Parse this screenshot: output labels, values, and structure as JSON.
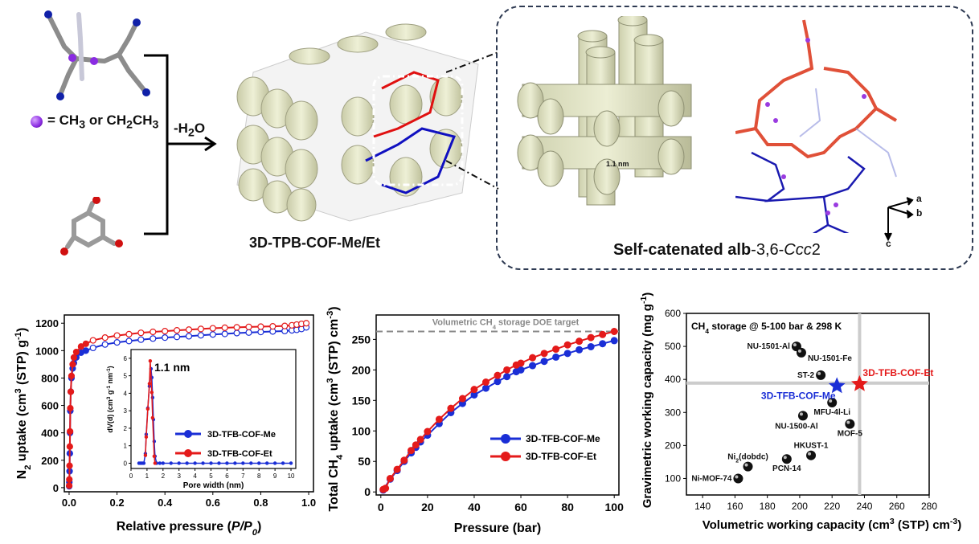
{
  "scheme": {
    "legend_text": "= CH",
    "legend_sub1": "3",
    "legend_or": " or CH",
    "legend_sub2": "2",
    "legend_ch": "CH",
    "legend_sub3": "3",
    "reaction_label": "-H",
    "reaction_sub": "2",
    "reaction_o": "O",
    "product_label": "3D-TPB-COF-Me/Et",
    "pore_label": "1.1 nm",
    "topology_prefix": "Self-catenated ",
    "topology_alb": "alb",
    "topology_mid": "-3,6-",
    "topology_italic": "Ccc",
    "topology_suffix": "2",
    "axes": {
      "a": "a",
      "b": "b",
      "c": "c"
    },
    "colors": {
      "methyl": "#8a2be2",
      "net1": "#e03020",
      "net2": "#1020c0",
      "pore": "#e6e8cc",
      "frame": "#2e3a52"
    }
  },
  "chart_data": [
    {
      "type": "scatter",
      "name": "n2-isotherm",
      "xlabel": "Relative pressure (P/P0)",
      "ylabel": "N2 uptake (cm3 (STP) g-1)",
      "xlim": [
        -0.02,
        1.02
      ],
      "ylim": [
        -30,
        1260
      ],
      "xticks": [
        0.0,
        0.2,
        0.4,
        0.6,
        0.8,
        1.0
      ],
      "xtick_labels": [
        "0.0",
        "0.2",
        "0.4",
        "0.6",
        "0.8",
        "1.0"
      ],
      "yticks": [
        0,
        200,
        400,
        600,
        800,
        1000,
        1200
      ],
      "ytick_labels": [
        "0",
        "200",
        "400",
        "600",
        "800",
        "1000",
        "1200"
      ],
      "series": [
        {
          "name": "3D-TFB-COF-Me",
          "color": "#1a2ed6",
          "x": [
            0.0005,
            0.001,
            0.002,
            0.003,
            0.004,
            0.005,
            0.007,
            0.01,
            0.015,
            0.02,
            0.03,
            0.05,
            0.07,
            0.1,
            0.15,
            0.2,
            0.25,
            0.3,
            0.35,
            0.4,
            0.45,
            0.5,
            0.55,
            0.6,
            0.65,
            0.7,
            0.75,
            0.8,
            0.85,
            0.9,
            0.93,
            0.95,
            0.97,
            0.99
          ],
          "y": [
            10,
            40,
            120,
            250,
            400,
            560,
            700,
            800,
            870,
            910,
            950,
            985,
            1000,
            1020,
            1045,
            1060,
            1070,
            1080,
            1088,
            1095,
            1100,
            1105,
            1112,
            1118,
            1122,
            1128,
            1132,
            1136,
            1140,
            1143,
            1148,
            1152,
            1158,
            1170
          ]
        },
        {
          "name": "3D-TFB-COF-Et",
          "color": "#e41a1a",
          "x": [
            0.0005,
            0.001,
            0.002,
            0.003,
            0.004,
            0.005,
            0.007,
            0.01,
            0.015,
            0.02,
            0.03,
            0.05,
            0.07,
            0.1,
            0.15,
            0.2,
            0.25,
            0.3,
            0.35,
            0.4,
            0.45,
            0.5,
            0.55,
            0.6,
            0.65,
            0.7,
            0.75,
            0.8,
            0.85,
            0.9,
            0.93,
            0.95,
            0.97,
            0.99
          ],
          "y": [
            15,
            60,
            160,
            300,
            410,
            580,
            700,
            815,
            900,
            950,
            990,
            1030,
            1050,
            1075,
            1095,
            1110,
            1120,
            1130,
            1137,
            1142,
            1148,
            1153,
            1158,
            1163,
            1167,
            1170,
            1173,
            1175,
            1177,
            1180,
            1185,
            1190,
            1195,
            1200
          ]
        }
      ],
      "inset": {
        "xlabel": "Pore width (nm)",
        "ylabel": "dV(d) (cm3 g-1 nm-1)",
        "xlim": [
          0,
          10.3
        ],
        "ylim": [
          -0.3,
          6.5
        ],
        "xticks": [
          0,
          1,
          2,
          3,
          4,
          5,
          6,
          7,
          8,
          9,
          10
        ],
        "yticks": [
          0,
          1,
          2,
          3,
          4,
          5,
          6
        ],
        "annotation": "1.1 nm",
        "series": [
          {
            "name": "3D-TFB-COF-Me",
            "color": "#1a2ed6",
            "x": [
              0.5,
              0.6,
              0.7,
              0.8,
              0.9,
              0.95,
              1.05,
              1.15,
              1.25,
              1.3,
              1.35,
              1.4,
              1.45,
              1.5,
              1.6,
              1.8,
              2.0,
              2.5,
              3,
              3.5,
              4,
              4.5,
              5,
              5.5,
              6,
              6.5,
              7,
              7.5,
              8,
              8.5,
              9,
              9.5,
              10
            ],
            "y": [
              0,
              0,
              0,
              0,
              0.55,
              1.65,
              3.15,
              4.4,
              5.4,
              4.9,
              3.75,
              2.5,
              1.25,
              0.4,
              0,
              0,
              0,
              0,
              0,
              0,
              0,
              0,
              0,
              0,
              0,
              0,
              0,
              0,
              0,
              0,
              0,
              0,
              0
            ]
          },
          {
            "name": "3D-TFB-COF-Et",
            "color": "#e41a1a",
            "x": [
              0.9,
              0.95,
              1.05,
              1.15,
              1.2,
              1.3,
              1.35,
              1.45,
              1.5
            ],
            "y": [
              0.45,
              1.5,
              3.1,
              4.55,
              5.85,
              4.05,
              2.6,
              0.4,
              0
            ]
          }
        ]
      },
      "legend": [
        "3D-TFB-COF-Me",
        "3D-TFB-COF-Et"
      ],
      "legend_placement": "inset-lower-right"
    },
    {
      "type": "line",
      "name": "ch4-isotherm",
      "xlabel": "Pressure (bar)",
      "ylabel": "Total CH4 uptake (cm3 (STP) cm-3)",
      "xlim": [
        -2,
        102
      ],
      "ylim": [
        -5,
        290
      ],
      "xticks": [
        0,
        20,
        40,
        60,
        80,
        100
      ],
      "yticks": [
        0,
        50,
        100,
        150,
        200,
        250
      ],
      "reference_line": {
        "y": 263,
        "label": "Volumetric CH4 storage DOE target",
        "color": "#888888"
      },
      "series": [
        {
          "name": "3D-TFB-COF-Me",
          "color": "#1a2ed6",
          "x": [
            1,
            4,
            7,
            10,
            13,
            15,
            17,
            20,
            25,
            30,
            35,
            40,
            45,
            50,
            54,
            58,
            60,
            65,
            70,
            75,
            80,
            85,
            90,
            95,
            100
          ],
          "y": [
            3,
            21,
            35,
            50,
            64,
            73,
            82,
            93,
            112,
            130,
            145,
            159,
            170,
            181,
            189,
            197,
            200,
            207,
            214,
            221,
            227,
            233,
            238,
            243,
            248
          ]
        },
        {
          "name": "3D-TFB-COF-Et",
          "color": "#e41a1a",
          "x": [
            1,
            2,
            4,
            7,
            10,
            13,
            15,
            17,
            20,
            25,
            30,
            35,
            40,
            45,
            50,
            54,
            58,
            60,
            65,
            70,
            75,
            80,
            85,
            90,
            95,
            100
          ],
          "y": [
            4,
            6,
            22,
            37,
            52,
            68,
            77,
            86,
            99,
            119,
            137,
            153,
            168,
            180,
            191,
            200,
            208,
            211,
            220,
            227,
            234,
            241,
            247,
            253,
            258,
            263
          ]
        }
      ],
      "legend": [
        "3D-TFB-COF-Me",
        "3D-TFB-COF-Et"
      ],
      "legend_placement": "center-right"
    },
    {
      "type": "scatter",
      "name": "working-capacity",
      "title": "CH4 storage @ 5-100 bar & 298 K",
      "xlabel": "Volumetric working capacity (cm3 (STP) cm-3)",
      "ylabel": "Gravimetric working capacity (mg g-1)",
      "xlim": [
        130,
        280
      ],
      "ylim": [
        50,
        600
      ],
      "xticks": [
        140,
        160,
        180,
        200,
        220,
        240,
        260,
        280
      ],
      "yticks": [
        100,
        200,
        300,
        400,
        500,
        600
      ],
      "reference_lines": {
        "x": 237,
        "y": 389,
        "color": "#cccccc"
      },
      "points": [
        {
          "label": "NU-1501-Al",
          "x": 198,
          "y": 500,
          "color": "#111111",
          "marker": "sphere",
          "label_pos": "left"
        },
        {
          "label": "NU-1501-Fe",
          "x": 201,
          "y": 481,
          "color": "#111111",
          "marker": "sphere",
          "label_pos": "right-below"
        },
        {
          "label": "ST-2",
          "x": 213,
          "y": 413,
          "color": "#111111",
          "marker": "sphere",
          "label_pos": "left"
        },
        {
          "label": "MFU-4l-Li",
          "x": 220,
          "y": 330,
          "color": "#111111",
          "marker": "sphere",
          "label_pos": "below"
        },
        {
          "label": "NU-1500-Al",
          "x": 202,
          "y": 290,
          "color": "#111111",
          "marker": "sphere",
          "label_pos": "below-left"
        },
        {
          "label": "MOF-5",
          "x": 231,
          "y": 265,
          "color": "#111111",
          "marker": "sphere",
          "label_pos": "below"
        },
        {
          "label": "HKUST-1",
          "x": 207,
          "y": 170,
          "color": "#111111",
          "marker": "sphere",
          "label_pos": "above"
        },
        {
          "label": "PCN-14",
          "x": 192,
          "y": 159,
          "color": "#111111",
          "marker": "sphere",
          "label_pos": "below"
        },
        {
          "label": "Ni2(dobdc)",
          "x": 168,
          "y": 136,
          "color": "#111111",
          "marker": "sphere",
          "label_pos": "above"
        },
        {
          "label": "Ni-MOF-74",
          "x": 162,
          "y": 100,
          "color": "#111111",
          "marker": "sphere",
          "label_pos": "left"
        },
        {
          "label": "3D-TFB-COF-Me",
          "x": 223,
          "y": 380,
          "color": "#1a2ed6",
          "marker": "star",
          "label_pos": "below-left"
        },
        {
          "label": "3D-TFB-COF-Et",
          "x": 237,
          "y": 386,
          "color": "#e41a1a",
          "marker": "star",
          "label_pos": "above-right"
        }
      ]
    }
  ]
}
